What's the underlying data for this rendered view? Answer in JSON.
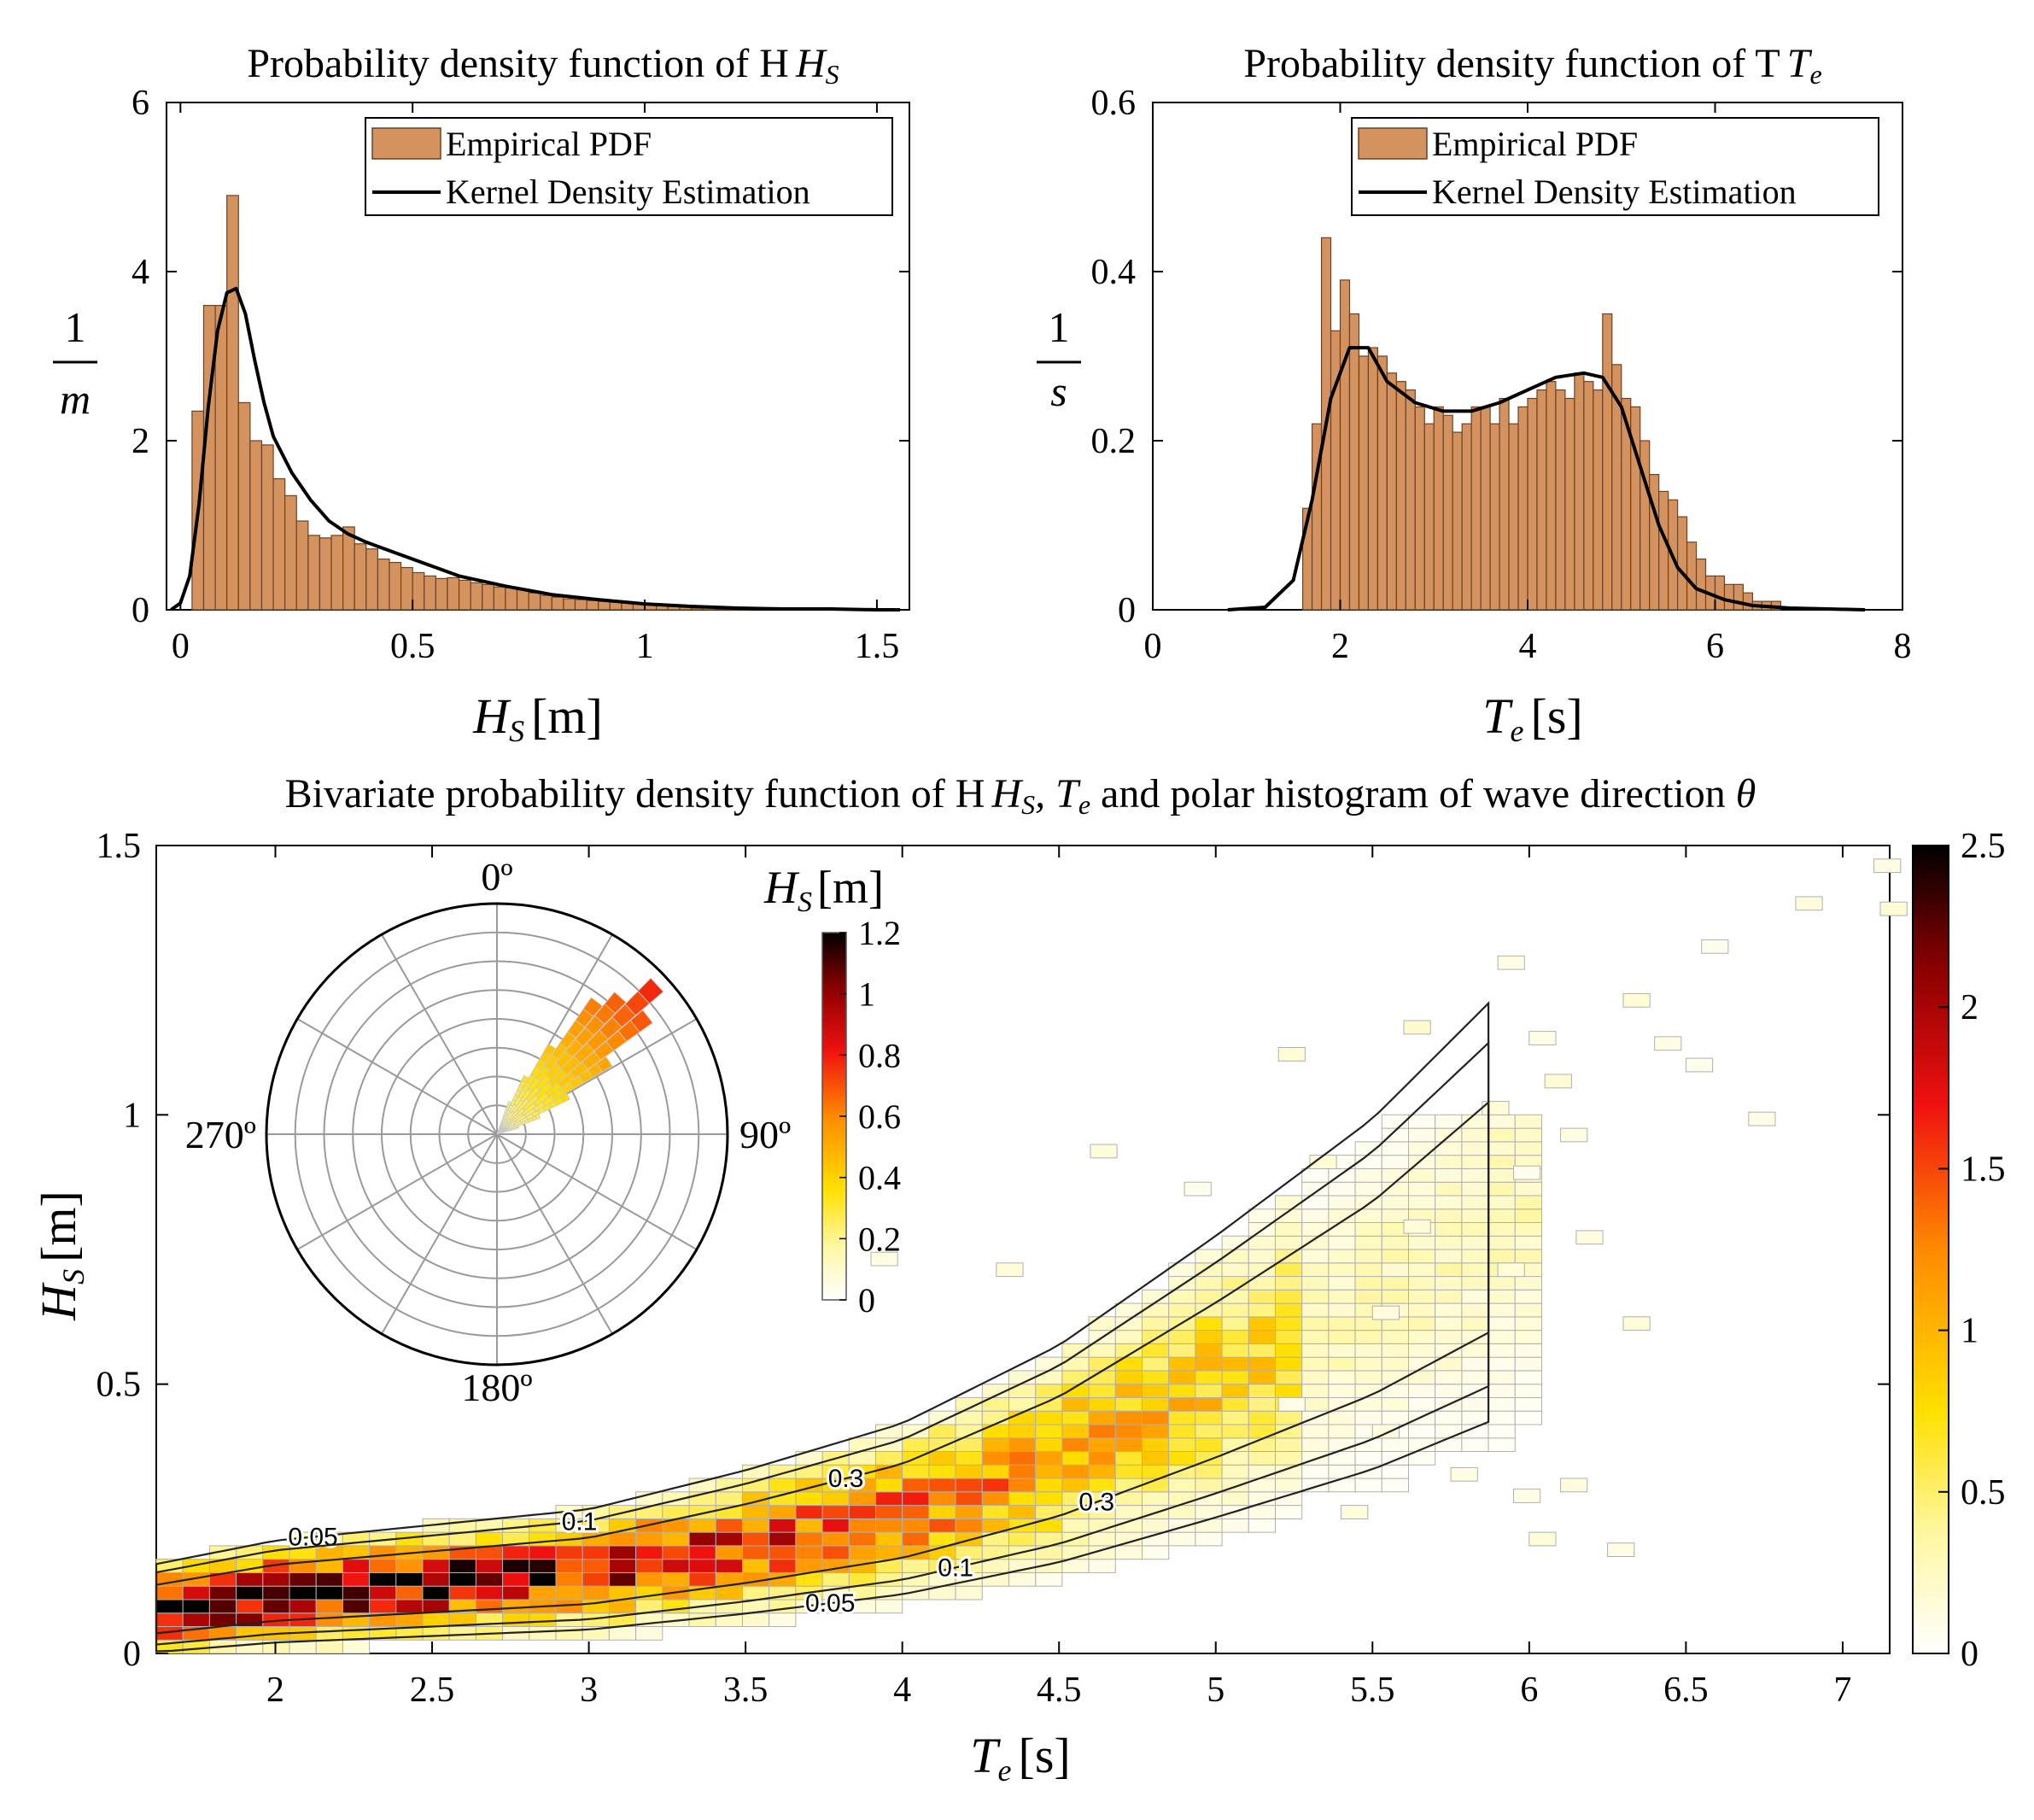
{
  "colors": {
    "bar": "#d4935e",
    "bar_edge": "#6b4226",
    "kde_line": "#000000",
    "grid": "#9a9a9a",
    "heat_cell_edge": "#b0b0b0"
  },
  "chart_data": [
    {
      "id": "pdf_hs",
      "type": "bar",
      "title": "Probability density function of H",
      "title_sub": "S",
      "xlabel_var": "H",
      "xlabel_sub": "S",
      "xlabel_unit": "[m]",
      "ylabel_num": "1",
      "ylabel_den": "m",
      "xlim": [
        -0.03,
        1.57
      ],
      "ylim": [
        0,
        6
      ],
      "xticks": [
        0,
        0.5,
        1,
        1.5
      ],
      "xtick_labels": [
        "0",
        "0.5",
        "1",
        "1.5"
      ],
      "yticks": [
        0,
        2,
        4,
        6
      ],
      "ytick_labels": [
        "0",
        "2",
        "4",
        "6"
      ],
      "legend": [
        "Empirical PDF",
        "Kernel Density Estimation"
      ],
      "bin_width": 0.025,
      "bin_start": 0.025,
      "values": [
        2.35,
        3.6,
        3.6,
        4.9,
        2.45,
        2.0,
        1.95,
        1.55,
        1.35,
        1.05,
        0.88,
        0.85,
        0.88,
        0.98,
        0.78,
        0.72,
        0.6,
        0.56,
        0.5,
        0.44,
        0.4,
        0.37,
        0.38,
        0.35,
        0.32,
        0.3,
        0.27,
        0.26,
        0.24,
        0.2,
        0.17,
        0.15,
        0.13,
        0.12,
        0.11,
        0.1,
        0.09,
        0.09,
        0.07,
        0.06,
        0.05,
        0.04,
        0.03,
        0.02,
        0.02,
        0.01,
        0.01,
        0.01
      ],
      "kde_x": [
        -0.02,
        0,
        0.02,
        0.04,
        0.06,
        0.08,
        0.1,
        0.12,
        0.14,
        0.16,
        0.18,
        0.2,
        0.24,
        0.28,
        0.32,
        0.36,
        0.4,
        0.45,
        0.5,
        0.55,
        0.6,
        0.7,
        0.8,
        0.9,
        1.0,
        1.1,
        1.2,
        1.3,
        1.4,
        1.5,
        1.55
      ],
      "kde_y": [
        0,
        0.08,
        0.4,
        1.25,
        2.4,
        3.3,
        3.75,
        3.8,
        3.5,
        2.95,
        2.45,
        2.05,
        1.62,
        1.3,
        1.05,
        0.9,
        0.8,
        0.7,
        0.6,
        0.5,
        0.4,
        0.28,
        0.18,
        0.12,
        0.07,
        0.04,
        0.02,
        0.01,
        0.01,
        0,
        0
      ]
    },
    {
      "id": "pdf_te",
      "type": "bar",
      "title": "Probability density function of T",
      "title_sub": "e",
      "xlabel_var": "T",
      "xlabel_sub": "e",
      "xlabel_unit": "[s]",
      "ylabel_num": "1",
      "ylabel_den": "s",
      "xlim": [
        0,
        8
      ],
      "ylim": [
        0,
        0.6
      ],
      "xticks": [
        0,
        2,
        4,
        6,
        8
      ],
      "xtick_labels": [
        "0",
        "2",
        "4",
        "6",
        "8"
      ],
      "yticks": [
        0,
        0.2,
        0.4,
        0.6
      ],
      "ytick_labels": [
        "0",
        "0.2",
        "0.4",
        "0.6"
      ],
      "legend": [
        "Empirical PDF",
        "Kernel Density Estimation"
      ],
      "bin_width": 0.1,
      "bin_start": 1.6,
      "values": [
        0.12,
        0.22,
        0.44,
        0.33,
        0.39,
        0.35,
        0.3,
        0.31,
        0.3,
        0.28,
        0.27,
        0.26,
        0.24,
        0.22,
        0.24,
        0.23,
        0.21,
        0.22,
        0.24,
        0.24,
        0.22,
        0.25,
        0.22,
        0.24,
        0.25,
        0.26,
        0.27,
        0.26,
        0.25,
        0.28,
        0.27,
        0.26,
        0.35,
        0.29,
        0.25,
        0.24,
        0.2,
        0.16,
        0.14,
        0.13,
        0.11,
        0.08,
        0.06,
        0.04,
        0.04,
        0.03,
        0.03,
        0.02,
        0.01,
        0.01,
        0.01
      ],
      "kde_x": [
        0.8,
        1.2,
        1.5,
        1.7,
        1.9,
        2.1,
        2.3,
        2.5,
        2.8,
        3.1,
        3.4,
        3.7,
        4.0,
        4.3,
        4.6,
        4.8,
        5.0,
        5.2,
        5.4,
        5.6,
        5.8,
        6.1,
        6.4,
        6.8,
        7.2,
        7.6
      ],
      "kde_y": [
        0,
        0.003,
        0.035,
        0.13,
        0.25,
        0.31,
        0.31,
        0.27,
        0.245,
        0.235,
        0.235,
        0.245,
        0.26,
        0.275,
        0.28,
        0.275,
        0.24,
        0.17,
        0.1,
        0.05,
        0.025,
        0.012,
        0.005,
        0.002,
        0.001,
        0
      ]
    },
    {
      "id": "bivariate",
      "type": "heatmap",
      "title": "Bivariate probability density function of H",
      "title_mid1": "S",
      "title_mid2": ", T",
      "title_mid3": "e",
      "title_end": " and polar histogram of wave direction ",
      "title_theta": "θ",
      "xlabel_var": "T",
      "xlabel_sub": "e",
      "xlabel_unit": "[s]",
      "ylabel_var": "H",
      "ylabel_sub": "S",
      "ylabel_unit": "[m]",
      "xlim": [
        1.62,
        7.15
      ],
      "ylim": [
        0,
        1.5
      ],
      "xticks": [
        2,
        2.5,
        3,
        3.5,
        4,
        4.5,
        5,
        5.5,
        6,
        6.5,
        7
      ],
      "xtick_labels": [
        "2",
        "2.5",
        "3",
        "3.5",
        "4",
        "4.5",
        "5",
        "5.5",
        "6",
        "6.5",
        "7"
      ],
      "yticks": [
        0,
        0.5,
        1,
        1.5
      ],
      "ytick_labels": [
        "0",
        "0.5",
        "1",
        "1.5"
      ],
      "cell_dx": 0.085,
      "cell_dy": 0.025,
      "colorbar": {
        "min": 0,
        "max": 2.5,
        "ticks": [
          0,
          0.5,
          1,
          1.5,
          2,
          2.5
        ],
        "tick_labels": [
          "0",
          "0.5",
          "1",
          "1.5",
          "2",
          "2.5"
        ]
      },
      "contour_labels": [
        "0.05",
        "0.1",
        "0.3"
      ],
      "ridge_te": [
        1.62,
        2.0,
        2.5,
        3.0,
        3.5,
        4.0,
        4.5,
        5.0,
        5.5,
        6.0,
        6.5,
        7.0
      ],
      "ridge_hs": [
        0.08,
        0.11,
        0.13,
        0.15,
        0.2,
        0.26,
        0.36,
        0.5,
        0.65,
        0.85,
        1.05,
        1.25
      ],
      "scattered_cells": [
        [
          5.85,
          1.0
        ],
        [
          6.05,
          1.05
        ],
        [
          6.3,
          1.2
        ],
        [
          6.55,
          1.3
        ],
        [
          6.85,
          1.38
        ],
        [
          5.6,
          1.15
        ],
        [
          5.9,
          1.27
        ],
        [
          6.1,
          0.95
        ],
        [
          6.4,
          1.12
        ],
        [
          6.7,
          0.98
        ],
        [
          5.2,
          1.1
        ],
        [
          4.9,
          0.85
        ],
        [
          5.6,
          0.78
        ],
        [
          5.95,
          0.88
        ],
        [
          6.15,
          0.76
        ],
        [
          5.5,
          0.62
        ],
        [
          5.9,
          0.7
        ],
        [
          5.2,
          0.45
        ],
        [
          5.5,
          0.4
        ],
        [
          5.75,
          0.32
        ],
        [
          5.95,
          0.28
        ],
        [
          6.0,
          0.2
        ],
        [
          6.1,
          0.3
        ],
        [
          6.25,
          0.18
        ],
        [
          5.4,
          0.25
        ],
        [
          5.7,
          0.5
        ],
        [
          6.3,
          0.6
        ],
        [
          4.6,
          0.92
        ],
        [
          3.9,
          0.72
        ],
        [
          4.3,
          0.7
        ],
        [
          7.1,
          1.45
        ],
        [
          7.12,
          1.37
        ],
        [
          6.5,
          1.08
        ],
        [
          5.3,
          0.9
        ],
        [
          6.0,
          1.13
        ]
      ],
      "polar": {
        "title_var": "H",
        "title_sub": "S",
        "title_unit": "[m]",
        "direction_labels": [
          "0º",
          "90º",
          "180º",
          "270º"
        ],
        "colorbar": {
          "min": 0,
          "max": 1.2,
          "ticks": [
            0,
            0.2,
            0.4,
            0.6,
            0.8,
            1,
            1.2
          ],
          "tick_labels": [
            "0",
            "0.2",
            "0.4",
            "0.6",
            "0.8",
            "1",
            "1.2"
          ]
        },
        "rings": 8,
        "spokes_deg": 30,
        "sector_angles_deg": [
          22,
          27,
          32,
          37,
          42,
          47,
          52,
          57,
          62,
          67,
          72
        ],
        "sector_extent": [
          0.15,
          0.28,
          0.45,
          0.72,
          0.8,
          0.95,
          0.83,
          0.58,
          0.35,
          0.2,
          0.1
        ]
      }
    }
  ]
}
